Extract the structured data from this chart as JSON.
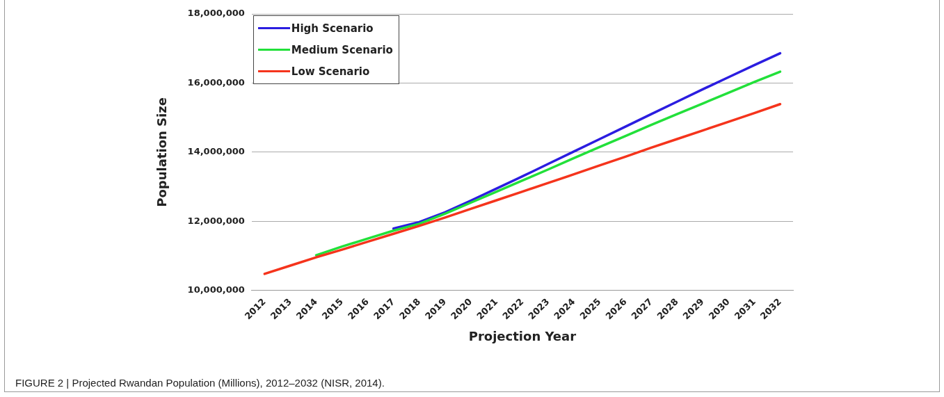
{
  "chart_data": {
    "type": "line",
    "xlabel": "Projection Year",
    "ylabel": "Population Size",
    "categories": [
      "2012",
      "2013",
      "2014",
      "2015",
      "2016",
      "2017",
      "2018",
      "2019",
      "2020",
      "2021",
      "2022",
      "2023",
      "2024",
      "2025",
      "2026",
      "2027",
      "2028",
      "2029",
      "2030",
      "2031",
      "2032"
    ],
    "series": [
      {
        "name": "High Scenario",
        "color": "#2b1de0",
        "values": [
          null,
          null,
          null,
          null,
          null,
          11790000,
          11980000,
          12260000,
          12600000,
          12950000,
          13300000,
          13660000,
          14020000,
          14380000,
          14740000,
          15100000,
          15460000,
          15820000,
          16170000,
          16520000,
          16860000
        ]
      },
      {
        "name": "Medium Scenario",
        "color": "#22e03a",
        "values": [
          null,
          null,
          11020000,
          11270000,
          11500000,
          11730000,
          11930000,
          12220000,
          12540000,
          12860000,
          13180000,
          13500000,
          13830000,
          14150000,
          14470000,
          14790000,
          15100000,
          15410000,
          15720000,
          16030000,
          16330000
        ]
      },
      {
        "name": "Low Scenario",
        "color": "#f5341c",
        "values": [
          10480000,
          10720000,
          10960000,
          11180000,
          11410000,
          11640000,
          11870000,
          12110000,
          12360000,
          12610000,
          12860000,
          13110000,
          13360000,
          13620000,
          13870000,
          14130000,
          14380000,
          14630000,
          14880000,
          15130000,
          15390000
        ]
      }
    ],
    "ylim": [
      10000000,
      18000000
    ],
    "yticks": [
      {
        "value": 10000000,
        "label": "10,000,000"
      },
      {
        "value": 12000000,
        "label": "12,000,000"
      },
      {
        "value": 14000000,
        "label": "14,000,000"
      },
      {
        "value": 16000000,
        "label": "16,000,000"
      },
      {
        "value": 18000000,
        "label": "18,000,000"
      }
    ],
    "grid": "y",
    "legend": "top left",
    "marker": "none",
    "line_style": "solid",
    "annotations": [
      "FIGURE 2 | Projected Rwandan Population (Millions), 2012–2032 (NISR, 2014)."
    ]
  }
}
